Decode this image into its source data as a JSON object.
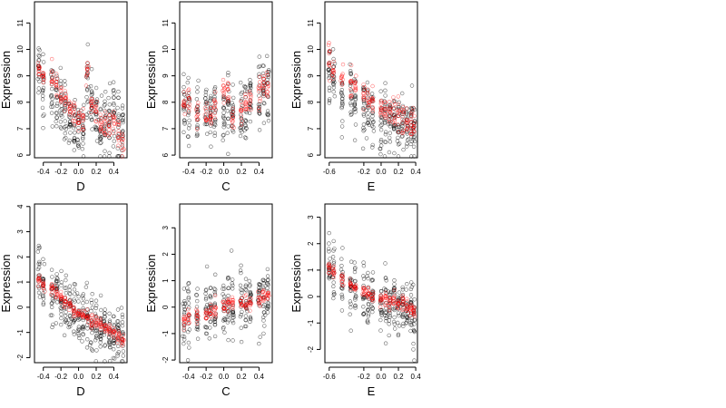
{
  "figure": {
    "ylabel": "Expression",
    "colors": {
      "observed": "#000000",
      "fitted": "#ff0000"
    }
  },
  "chart_data": [
    {
      "type": "scatter",
      "xlabel": "D",
      "ylabel": "Expression",
      "xlim": [
        -0.5,
        0.55
      ],
      "ylim": [
        5.9,
        11.8
      ],
      "xticks": [
        -0.4,
        -0.2,
        0.0,
        0.2,
        0.4
      ],
      "xtick_labels": [
        "-0.4",
        "-0.2",
        "0.0",
        "0.2",
        "0.4"
      ],
      "yticks": [
        6,
        7,
        8,
        9,
        10,
        11
      ],
      "ytick_labels": [
        "6",
        "7",
        "8",
        "9",
        "10",
        "11"
      ],
      "groups": [
        -0.45,
        -0.4,
        -0.3,
        -0.25,
        -0.2,
        -0.15,
        -0.1,
        -0.05,
        0.0,
        0.05,
        0.1,
        0.15,
        0.2,
        0.25,
        0.3,
        0.35,
        0.4,
        0.45,
        0.5
      ],
      "series": [
        {
          "role": "observed",
          "color": "#000000",
          "centers": [
            9.2,
            8.6,
            8.3,
            8.0,
            7.8,
            7.5,
            7.3,
            7.2,
            7.1,
            7.0,
            8.8,
            7.9,
            7.5,
            7.2,
            7.0,
            7.4,
            7.6,
            7.0,
            6.9
          ],
          "spread": 1.2,
          "points_per_group": 18
        },
        {
          "role": "fitted",
          "color": "#ff0000",
          "centers": [
            9.3,
            9.0,
            8.9,
            8.6,
            8.2,
            8.0,
            7.7,
            7.5,
            7.3,
            7.2,
            9.2,
            8.0,
            7.6,
            7.3,
            7.1,
            7.2,
            7.3,
            6.9,
            6.6
          ],
          "spread": 0.45,
          "points_per_group": 10
        }
      ]
    },
    {
      "type": "scatter",
      "xlabel": "C",
      "ylabel": "Expression",
      "xlim": [
        -0.5,
        0.55
      ],
      "ylim": [
        5.9,
        11.8
      ],
      "xticks": [
        -0.4,
        -0.2,
        0.0,
        0.2,
        0.4
      ],
      "xtick_labels": [
        "-0.4",
        "-0.2",
        "0.0",
        "0.2",
        "0.4"
      ],
      "yticks": [
        6,
        7,
        8,
        9,
        10,
        11
      ],
      "ytick_labels": [
        "6",
        "7",
        "8",
        "9",
        "10",
        "11"
      ],
      "groups": [
        -0.45,
        -0.4,
        -0.3,
        -0.2,
        -0.15,
        -0.1,
        0.0,
        0.05,
        0.1,
        0.2,
        0.25,
        0.3,
        0.4,
        0.45,
        0.5
      ],
      "series": [
        {
          "role": "observed",
          "color": "#000000",
          "centers": [
            7.6,
            7.8,
            7.5,
            7.4,
            7.5,
            7.7,
            7.6,
            7.9,
            7.5,
            7.8,
            7.9,
            8.0,
            8.2,
            8.4,
            8.5
          ],
          "spread": 1.3,
          "points_per_group": 18
        },
        {
          "role": "fitted",
          "color": "#ff0000",
          "centers": [
            7.9,
            8.1,
            7.6,
            7.4,
            7.5,
            7.8,
            8.4,
            8.2,
            7.3,
            7.6,
            8.0,
            8.1,
            8.4,
            8.6,
            8.8
          ],
          "spread": 0.55,
          "points_per_group": 10
        }
      ]
    },
    {
      "type": "scatter",
      "xlabel": "E",
      "ylabel": "Expression",
      "xlim": [
        -0.65,
        0.42
      ],
      "ylim": [
        5.9,
        11.8
      ],
      "xticks": [
        -0.6,
        -0.2,
        0.0,
        0.2,
        0.4
      ],
      "xtick_labels": [
        "-0.6",
        "-0.2",
        "0.0",
        "0.2",
        "0.4"
      ],
      "yticks": [
        6,
        7,
        8,
        9,
        10,
        11
      ],
      "ytick_labels": [
        "6",
        "7",
        "8",
        "9",
        "10",
        "11"
      ],
      "groups": [
        -0.6,
        -0.55,
        -0.45,
        -0.35,
        -0.3,
        -0.2,
        -0.15,
        -0.1,
        0.0,
        0.05,
        0.1,
        0.15,
        0.2,
        0.25,
        0.3,
        0.35,
        0.38
      ],
      "series": [
        {
          "role": "observed",
          "color": "#000000",
          "centers": [
            9.0,
            8.8,
            8.4,
            8.2,
            8.0,
            7.8,
            7.6,
            7.5,
            7.2,
            7.4,
            7.3,
            7.3,
            7.2,
            7.1,
            7.0,
            7.2,
            7.1
          ],
          "spread": 1.1,
          "points_per_group": 18
        },
        {
          "role": "fitted",
          "color": "#ff0000",
          "centers": [
            9.5,
            9.2,
            8.8,
            8.6,
            8.5,
            8.3,
            8.1,
            7.9,
            7.7,
            7.8,
            7.6,
            7.5,
            7.5,
            7.4,
            7.3,
            7.2,
            7.3
          ],
          "spread": 0.55,
          "points_per_group": 10
        }
      ]
    },
    {
      "type": "scatter",
      "xlabel": "D",
      "ylabel": "Expression",
      "xlim": [
        -0.5,
        0.55
      ],
      "ylim": [
        -2.2,
        4.1
      ],
      "xticks": [
        -0.4,
        -0.2,
        0.0,
        0.2,
        0.4
      ],
      "xtick_labels": [
        "-0.4",
        "-0.2",
        "0.0",
        "0.2",
        "0.4"
      ],
      "yticks": [
        -2,
        -1,
        0,
        1,
        2,
        3,
        4
      ],
      "ytick_labels": [
        "-2",
        "-1",
        "0",
        "1",
        "2",
        "3",
        "4"
      ],
      "groups": [
        -0.45,
        -0.4,
        -0.3,
        -0.25,
        -0.2,
        -0.15,
        -0.1,
        -0.05,
        0.0,
        0.05,
        0.1,
        0.15,
        0.2,
        0.25,
        0.3,
        0.35,
        0.4,
        0.45,
        0.5
      ],
      "series": [
        {
          "role": "observed",
          "color": "#000000",
          "centers": [
            1.5,
            1.0,
            0.6,
            0.4,
            0.2,
            0.0,
            -0.2,
            -0.3,
            -0.4,
            -0.5,
            -0.3,
            -0.6,
            -0.7,
            -0.8,
            -0.9,
            -1.0,
            -1.0,
            -1.1,
            -1.2
          ],
          "spread": 1.2,
          "points_per_group": 18
        },
        {
          "role": "fitted",
          "color": "#ff0000",
          "centers": [
            1.1,
            0.9,
            0.7,
            0.6,
            0.4,
            0.2,
            0.1,
            -0.1,
            -0.2,
            -0.3,
            -0.4,
            -0.5,
            -0.6,
            -0.7,
            -0.8,
            -0.9,
            -1.0,
            -1.1,
            -1.3
          ],
          "spread": 0.25,
          "points_per_group": 10
        }
      ]
    },
    {
      "type": "scatter",
      "xlabel": "C",
      "ylabel": "Expression",
      "xlim": [
        -0.5,
        0.55
      ],
      "ylim": [
        -2.1,
        3.9
      ],
      "xticks": [
        -0.4,
        -0.2,
        0.0,
        0.2,
        0.4
      ],
      "xtick_labels": [
        "-0.4",
        "-0.2",
        "0.0",
        "0.2",
        "0.4"
      ],
      "yticks": [
        -2,
        -1,
        0,
        1,
        2,
        3
      ],
      "ytick_labels": [
        "-2",
        "-1",
        "0",
        "1",
        "2",
        "3"
      ],
      "groups": [
        -0.45,
        -0.4,
        -0.3,
        -0.2,
        -0.15,
        -0.1,
        0.0,
        0.05,
        0.1,
        0.2,
        0.25,
        0.3,
        0.4,
        0.45,
        0.5
      ],
      "series": [
        {
          "role": "observed",
          "color": "#000000",
          "centers": [
            -0.3,
            -0.2,
            -0.3,
            -0.1,
            -0.2,
            0.0,
            -0.1,
            0.1,
            0.0,
            0.2,
            0.1,
            0.2,
            0.4,
            0.3,
            0.5
          ],
          "spread": 1.2,
          "points_per_group": 18
        },
        {
          "role": "fitted",
          "color": "#ff0000",
          "centers": [
            -0.5,
            -0.4,
            -0.3,
            -0.3,
            -0.2,
            -0.1,
            0.1,
            0.0,
            0.1,
            0.2,
            0.1,
            0.2,
            0.3,
            0.4,
            0.5
          ],
          "spread": 0.3,
          "points_per_group": 10
        }
      ]
    },
    {
      "type": "scatter",
      "xlabel": "E",
      "ylabel": "Expression",
      "xlim": [
        -0.65,
        0.42
      ],
      "ylim": [
        -2.5,
        3.5
      ],
      "xticks": [
        -0.6,
        -0.2,
        0.0,
        0.2,
        0.4
      ],
      "xtick_labels": [
        "-0.6",
        "-0.2",
        "0.0",
        "0.2",
        "0.4"
      ],
      "yticks": [
        -2,
        -1,
        0,
        1,
        2,
        3
      ],
      "ytick_labels": [
        "-2",
        "-1",
        "0",
        "1",
        "2",
        "3"
      ],
      "groups": [
        -0.6,
        -0.55,
        -0.45,
        -0.35,
        -0.3,
        -0.2,
        -0.15,
        -0.1,
        0.0,
        0.05,
        0.1,
        0.15,
        0.2,
        0.25,
        0.3,
        0.35,
        0.38
      ],
      "series": [
        {
          "role": "observed",
          "color": "#000000",
          "centers": [
            1.2,
            1.0,
            0.6,
            0.4,
            0.3,
            0.1,
            0.0,
            -0.1,
            -0.2,
            -0.1,
            -0.3,
            -0.2,
            -0.4,
            -0.3,
            -0.5,
            -0.6,
            -0.7
          ],
          "spread": 1.1,
          "points_per_group": 18
        },
        {
          "role": "fitted",
          "color": "#ff0000",
          "centers": [
            1.1,
            0.9,
            0.6,
            0.4,
            0.3,
            0.2,
            0.1,
            0.0,
            -0.1,
            0.0,
            -0.2,
            -0.1,
            -0.3,
            -0.3,
            -0.4,
            -0.5,
            -0.6
          ],
          "spread": 0.25,
          "points_per_group": 10
        }
      ]
    }
  ]
}
